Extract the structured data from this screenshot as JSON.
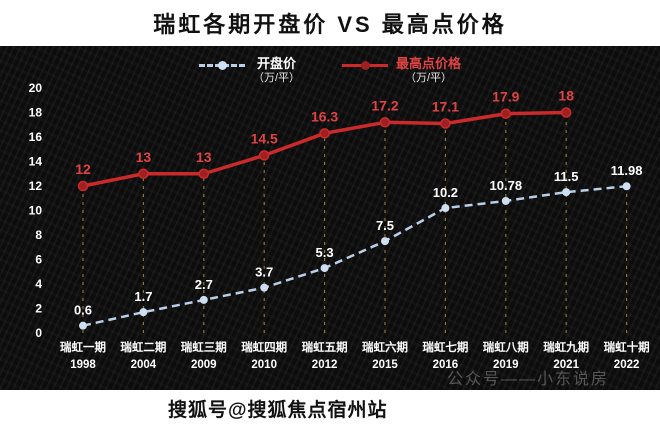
{
  "header": {
    "title": "瑞虹各期开盘价 VS 最高点价格"
  },
  "footer": {
    "watermark": "搜狐号@搜狐焦点宿州站"
  },
  "chart": {
    "watermark": "公众号——小东说房",
    "background_color": "#0c0c0c",
    "guide_line_color": "#8a782f",
    "legend": [
      {
        "label": "开盘价",
        "unit": "（万/平）",
        "line_color": "#b9cfe8",
        "marker_color": "#cfdff2",
        "label_color": "#ffffff",
        "line_style": "dashed"
      },
      {
        "label": "最高点价格",
        "unit": "（万/平）",
        "line_color": "#cc2a2a",
        "marker_color": "#9e2020",
        "label_color": "#e04343",
        "line_style": "solid"
      }
    ]
  },
  "chart_data": {
    "type": "line",
    "title": "瑞虹各期开盘价 VS 最高点价格",
    "categories": [
      {
        "name": "瑞虹一期",
        "year": "1998"
      },
      {
        "name": "瑞虹二期",
        "year": "2004"
      },
      {
        "name": "瑞虹三期",
        "year": "2009"
      },
      {
        "name": "瑞虹四期",
        "year": "2010"
      },
      {
        "name": "瑞虹五期",
        "year": "2012"
      },
      {
        "name": "瑞虹六期",
        "year": "2015"
      },
      {
        "name": "瑞虹七期",
        "year": "2016"
      },
      {
        "name": "瑞虹八期",
        "year": "2019"
      },
      {
        "name": "瑞虹九期",
        "year": "2021"
      },
      {
        "name": "瑞虹十期",
        "year": "2022"
      }
    ],
    "series": [
      {
        "name": "开盘价",
        "unit": "万/平",
        "values": [
          0.6,
          1.7,
          2.7,
          3.7,
          5.3,
          7.5,
          10.2,
          10.78,
          11.5,
          11.98
        ]
      },
      {
        "name": "最高点价格",
        "unit": "万/平",
        "values": [
          12,
          13,
          13,
          14.5,
          16.3,
          17.2,
          17.1,
          17.9,
          18,
          null
        ]
      }
    ],
    "ylim": [
      0,
      20
    ],
    "ytick_step": 2,
    "grid": false,
    "legend_position": "top"
  }
}
